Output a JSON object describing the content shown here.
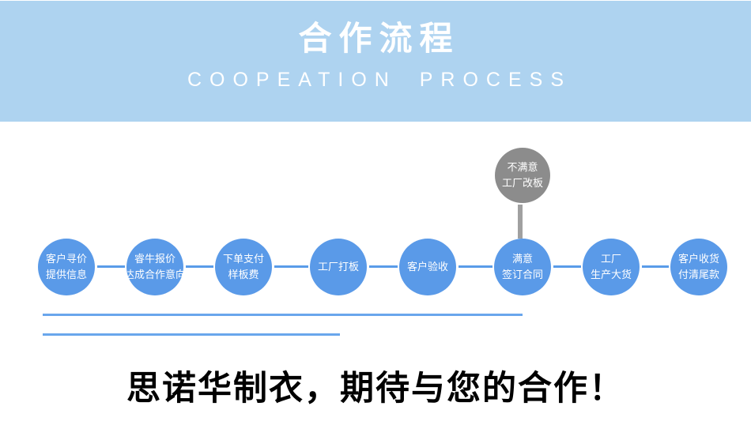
{
  "colors": {
    "header-bg": "#aed3f0",
    "circle-blue": "#5a9ae8",
    "connector-blue": "#5a9ce9",
    "branch-gray": "#8c8c8c",
    "branch-line-gray": "#a0a0a0",
    "underline-blue": "#69a6ec",
    "slogan-black": "#000000"
  },
  "header": {
    "title": "合作流程",
    "subtitle": "COOPEATION PROCESS"
  },
  "flow": {
    "steps": [
      {
        "lines": [
          "客户寻价",
          "提供信息"
        ]
      },
      {
        "lines": [
          "睿牛报价",
          "达成合作意向"
        ]
      },
      {
        "lines": [
          "下单支付",
          "样板费"
        ]
      },
      {
        "lines": [
          "工厂打板"
        ]
      },
      {
        "lines": [
          "客户验收"
        ]
      },
      {
        "lines": [
          "满意",
          "签订合同"
        ]
      },
      {
        "lines": [
          "工厂",
          "生产大货"
        ]
      },
      {
        "lines": [
          "客户收货",
          "付清尾款"
        ]
      }
    ],
    "branch": {
      "lines": [
        "不满意",
        "工厂改板"
      ]
    }
  },
  "footer": {
    "slogan": "思诺华制衣，期待与您的合作！"
  }
}
